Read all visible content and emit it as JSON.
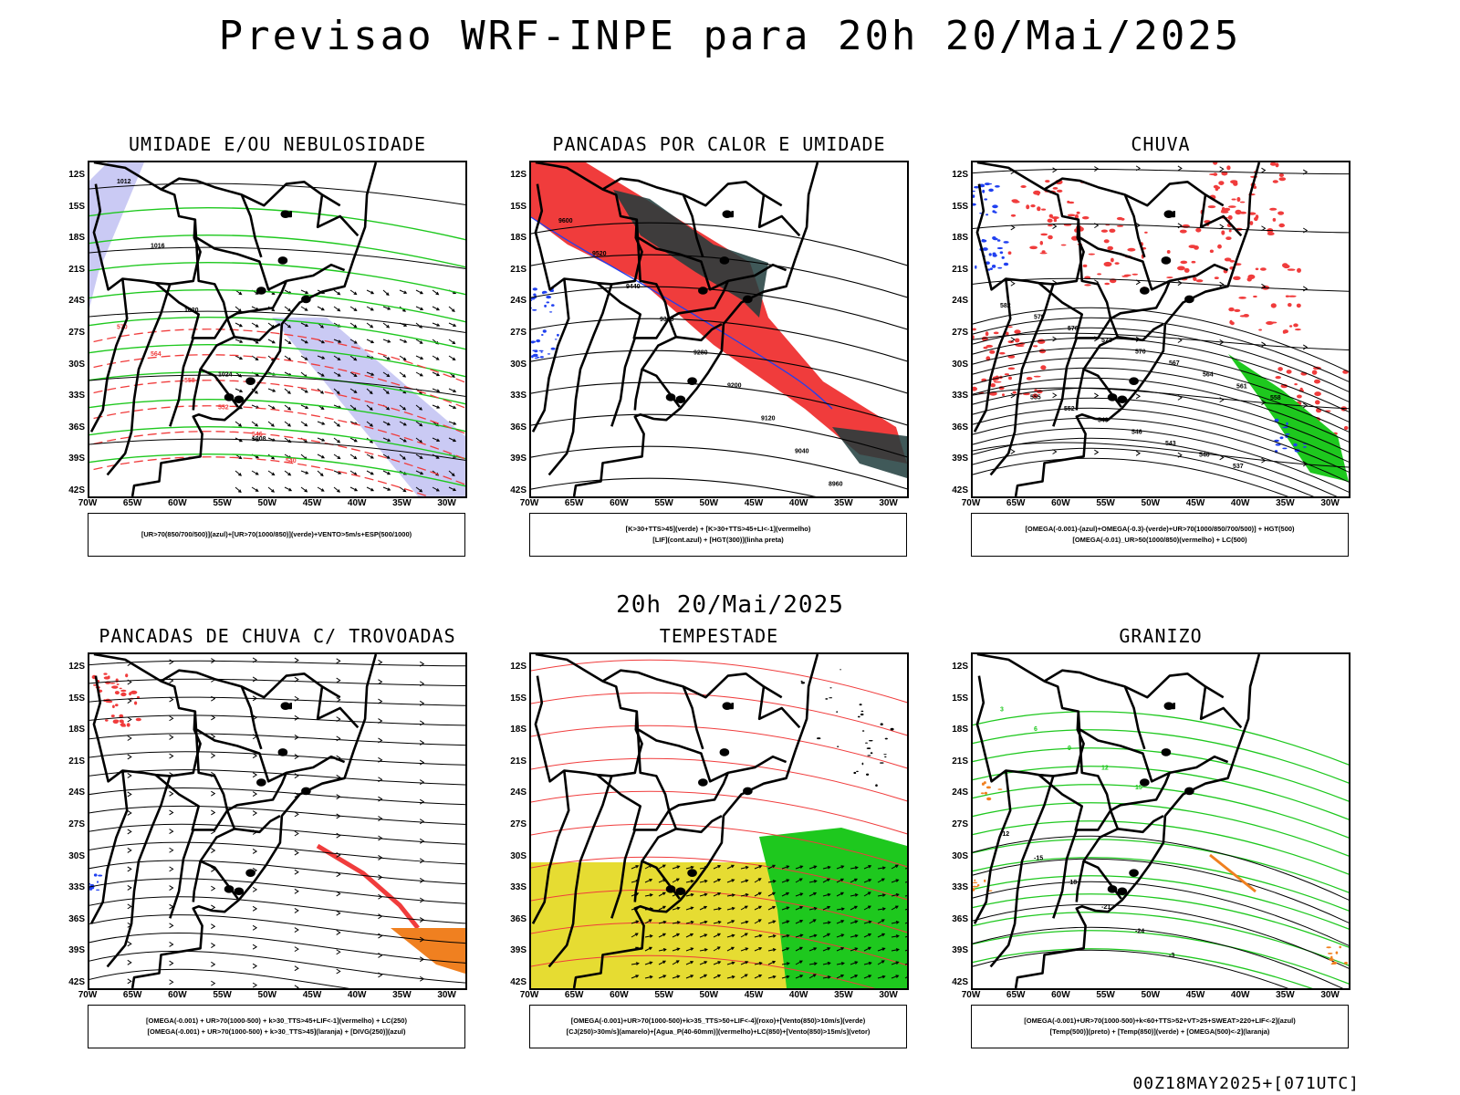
{
  "title": "Previsao WRF-INPE  para 20h 20/Mai/2025",
  "mid_time": "20h 20/Mai/2025",
  "footer": "00Z18MAY2025+[071UTC]",
  "lat_ticks": [
    "12S",
    "15S",
    "18S",
    "21S",
    "24S",
    "27S",
    "30S",
    "33S",
    "36S",
    "39S",
    "42S"
  ],
  "lon_ticks": [
    "70W",
    "65W",
    "60W",
    "55W",
    "50W",
    "45W",
    "40W",
    "35W",
    "30W"
  ],
  "colors": {
    "red": "#f03c3c",
    "green": "#1ec81e",
    "blue": "#2040f0",
    "dark": "#1e3c3c",
    "orange": "#f08020",
    "yellow": "#e6dc32",
    "lavender": "#b4b4f0"
  },
  "panels": [
    {
      "title": "UMIDADE E/OU NEBULOSIDADE",
      "legend": [
        "[UR>70(850/700/500)](azul)+[UR>70(1000/850)](verde)+VENTO>5m/s+ESP(500/1000)"
      ]
    },
    {
      "title": "PANCADAS POR CALOR E UMIDADE",
      "legend": [
        "[K>30+TTS>45](verde) + [K>30+TTS>45+LI<-1](vermelho)",
        "[LIF](cont.azul) + [HGT(300)](linha preta)"
      ]
    },
    {
      "title": "CHUVA",
      "legend": [
        "[OMEGA(-0.001)-(azul)+OMEGA(-0.3)-(verde)+UR>70(1000/850/700/500)] + HGT(500)",
        "[OMEGA(-0.01)_UR>50(1000/850)(vermelho) + LC(500)"
      ]
    },
    {
      "title": "PANCADAS DE CHUVA C/ TROVOADAS",
      "legend": [
        "[OMEGA(-0.001) + UR>70(1000-500) + k>30_TTS>45+LIF<-1](vermelho) + LC(250)",
        "[OMEGA(-0.001) + UR>70(1000-500) + k>30_TTS>45](laranja) + [DIVG(250)](azul)"
      ]
    },
    {
      "title": "TEMPESTADE",
      "legend": [
        "[OMEGA(-0.001)+UR>70(1000-500)+k>35_TTS>50+LIF<-4](roxo)+[Vento(850)>10m/s](verde)",
        "[CJ(250)>30m/s](amarelo)+[Agua_P(40-60mm)](vermelho)+LC(850)+[Vento(850)>15m/s](vetor)"
      ]
    },
    {
      "title": "GRANIZO",
      "legend": [
        "[OMEGA(-0.001)+UR>70(1000-500)+k<60+TTS>52+VT>25+SWEAT>220+LIF<-2](azul)",
        "[Temp(500)](preto) + [Temp(850)](verde) + [OMEGA(500)<-2](laranja)"
      ]
    }
  ],
  "contour_labels": {
    "p1": [
      "1012",
      "1016",
      "1020",
      "1024",
      "1008",
      "1004",
      "1000",
      "570",
      "564",
      "558",
      "552",
      "546",
      "540"
    ],
    "p2": [
      "9600",
      "9520",
      "9440",
      "9360",
      "9280",
      "9200",
      "9120",
      "9040",
      "8960"
    ],
    "p3": [
      "582",
      "579",
      "576",
      "573",
      "570",
      "567",
      "564",
      "561",
      "558",
      "555",
      "552",
      "549",
      "546",
      "543",
      "540",
      "537"
    ],
    "p6": [
      "-3",
      "-12",
      "-15",
      "-18",
      "-21",
      "-24",
      "3",
      "6",
      "9",
      "12",
      "15"
    ]
  }
}
